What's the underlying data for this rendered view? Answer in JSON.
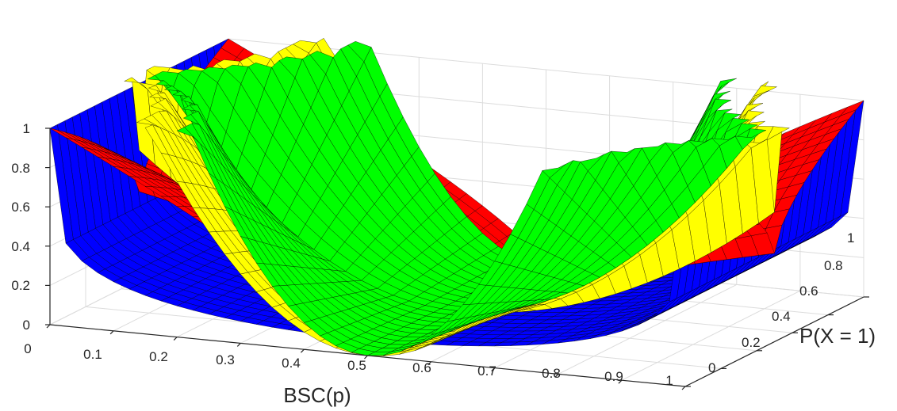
{
  "chart_data": {
    "type": "surface",
    "title": "",
    "xlabel": "BSC(p)",
    "ylabel": "P(X = 1)",
    "zlabel": "",
    "xlim": [
      0,
      1
    ],
    "ylim": [
      0,
      1
    ],
    "zlim": [
      0,
      1
    ],
    "xticks": [
      "0",
      "0.1",
      "0.2",
      "0.3",
      "0.4",
      "0.5",
      "0.6",
      "0.7",
      "0.8",
      "0.9",
      "1"
    ],
    "yticks": [
      "0",
      "0.2",
      "0.4",
      "0.6",
      "0.8",
      "1"
    ],
    "zticks": [
      "0",
      "0.2",
      "0.4",
      "0.6",
      "0.8",
      "1"
    ],
    "grid": true,
    "series": [
      {
        "color": "#0000ff"
      },
      {
        "color": "#ff0000"
      },
      {
        "color": "#ffff00"
      },
      {
        "color": "#00ff00"
      }
    ]
  }
}
